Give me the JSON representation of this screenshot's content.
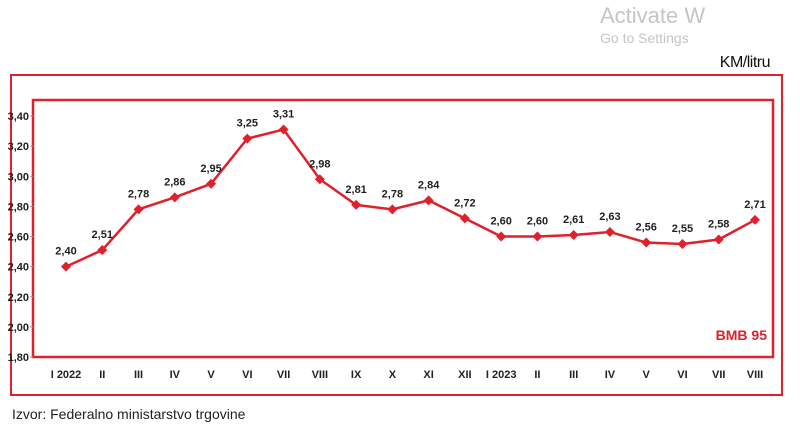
{
  "chart_data": {
    "type": "line",
    "unit_label": "KM/litru",
    "series_label": "BMB 95",
    "categories": [
      "I 2022",
      "II",
      "III",
      "IV",
      "V",
      "VI",
      "VII",
      "VIII",
      "IX",
      "X",
      "XI",
      "XII",
      "I 2023",
      "II",
      "III",
      "IV",
      "V",
      "VI",
      "VII",
      "VIII"
    ],
    "series": [
      {
        "name": "BMB 95",
        "values": [
          2.4,
          2.51,
          2.78,
          2.86,
          2.95,
          3.25,
          3.31,
          2.98,
          2.81,
          2.78,
          2.84,
          2.72,
          2.6,
          2.6,
          2.61,
          2.63,
          2.56,
          2.55,
          2.58,
          2.71
        ]
      }
    ],
    "data_labels": [
      "2,40",
      "2,51",
      "2,78",
      "2,86",
      "2,95",
      "3,25",
      "3,31",
      "2,98",
      "2,81",
      "2,78",
      "2,84",
      "2,72",
      "2,60",
      "2,60",
      "2,61",
      "2,63",
      "2,56",
      "2,55",
      "2,58",
      "2,71"
    ],
    "yticks": [
      "1,80",
      "2,00",
      "2,20",
      "2,40",
      "2,60",
      "2,80",
      "3,00",
      "3,20",
      "3,40"
    ],
    "ylim": [
      1.8,
      3.4
    ],
    "grid": false,
    "color": "#e0202a"
  },
  "source": "Izvor: Federalno  ministarstvo trgovine",
  "watermark": {
    "line1": "Activate W",
    "line2": "Go to Settings"
  }
}
